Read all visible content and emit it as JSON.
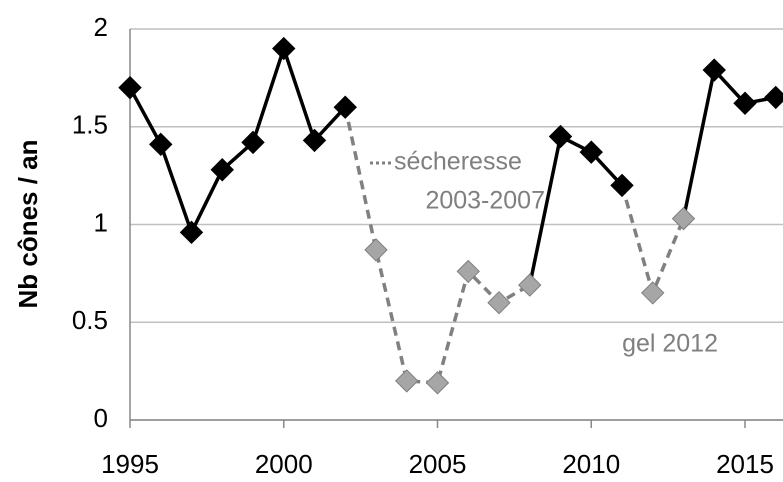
{
  "chart_data": {
    "type": "line",
    "y_label": "Nb cônes / an",
    "annotations": [
      "sécheresse",
      "2003-2007",
      "gel 2012"
    ],
    "x": [
      1995,
      1996,
      1997,
      1998,
      1999,
      2000,
      2001,
      2002,
      2003,
      2004,
      2005,
      2006,
      2007,
      2008,
      2009,
      2010,
      2011,
      2012,
      2013,
      2014,
      2015,
      2016
    ],
    "series": [
      {
        "color": "#000000",
        "line": "solid",
        "values": [
          1.7,
          1.41,
          0.96,
          1.28,
          1.42,
          1.9,
          1.43,
          1.6,
          null,
          null,
          null,
          null,
          null,
          0.69,
          1.45,
          1.37,
          1.2,
          null,
          1.03,
          1.79,
          1.62,
          1.65
        ]
      },
      {
        "color": "#808080",
        "line": "dashed",
        "values": [
          null,
          null,
          null,
          null,
          null,
          null,
          null,
          1.6,
          0.87,
          0.2,
          0.19,
          0.76,
          0.6,
          0.69,
          null,
          null,
          1.2,
          0.65,
          1.03,
          null,
          null,
          null
        ]
      }
    ],
    "marker_colors": [
      "#000000",
      "#000000",
      "#000000",
      "#000000",
      "#000000",
      "#000000",
      "#000000",
      "#000000",
      "#808080",
      "#808080",
      "#808080",
      "#808080",
      "#808080",
      "#808080",
      "#000000",
      "#000000",
      "#000000",
      "#808080",
      "#808080",
      "#000000",
      "#000000",
      "#000000"
    ],
    "xlim": [
      1995,
      2016
    ],
    "xticks": [
      1995,
      2000,
      2005,
      2010,
      2015
    ],
    "ylim": [
      0,
      2
    ],
    "yticks": [
      0,
      0.5,
      1,
      1.5,
      2
    ],
    "grid": true
  }
}
